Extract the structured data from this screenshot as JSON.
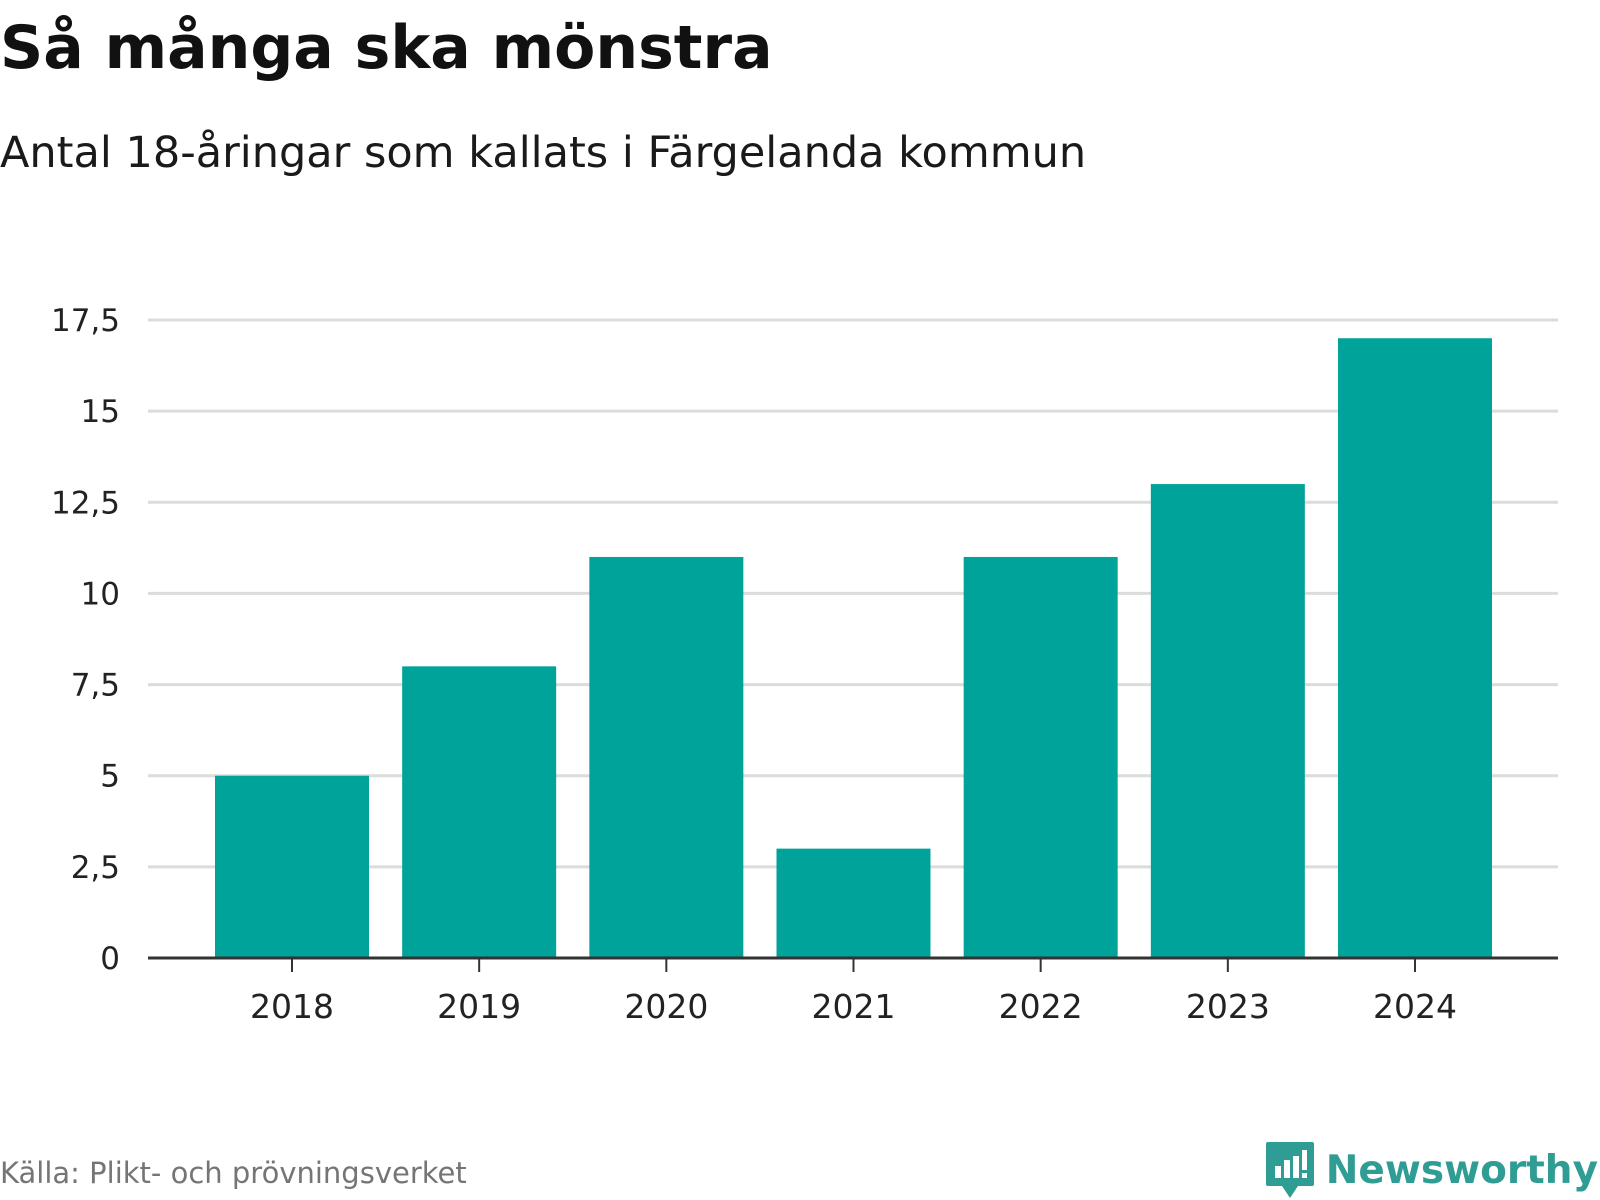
{
  "header": {
    "title": "Så många ska mönstra",
    "subtitle": "Antal 18-åringar som kallats i Färgelanda kommun"
  },
  "footer": {
    "source": "Källa: Plikt- och prövningsverket",
    "brand": "Newsworthy",
    "brand_icon": "bar-chart-logo-icon"
  },
  "colors": {
    "bar": "#00a39a",
    "grid": "#dcdcdc",
    "axis": "#333333",
    "brand": "#2f9d93"
  },
  "chart_data": {
    "type": "bar",
    "title": "Så många ska mönstra",
    "subtitle": "Antal 18-åringar som kallats i Färgelanda kommun",
    "xlabel": "",
    "ylabel": "",
    "categories": [
      "2018",
      "2019",
      "2020",
      "2021",
      "2022",
      "2023",
      "2024"
    ],
    "values": [
      5,
      8,
      11,
      3,
      11,
      13,
      17
    ],
    "ylim": [
      0,
      17.5
    ],
    "yticks": [
      0,
      2.5,
      5,
      7.5,
      10,
      12.5,
      15,
      17.5
    ],
    "ytick_labels": [
      "0",
      "2,5",
      "5",
      "7,5",
      "10",
      "12,5",
      "15",
      "17,5"
    ],
    "grid": true,
    "legend": "none"
  }
}
